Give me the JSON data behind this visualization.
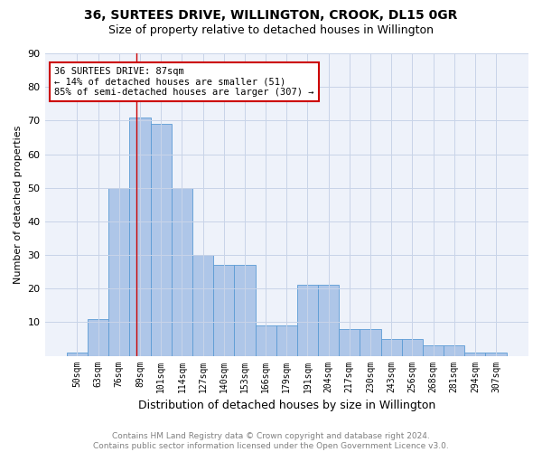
{
  "title1": "36, SURTEES DRIVE, WILLINGTON, CROOK, DL15 0GR",
  "title2": "Size of property relative to detached houses in Willington",
  "xlabel": "Distribution of detached houses by size in Willington",
  "ylabel": "Number of detached properties",
  "categories": [
    "50sqm",
    "63sqm",
    "76sqm",
    "89sqm",
    "101sqm",
    "114sqm",
    "127sqm",
    "140sqm",
    "153sqm",
    "166sqm",
    "179sqm",
    "191sqm",
    "204sqm",
    "217sqm",
    "230sqm",
    "243sqm",
    "256sqm",
    "268sqm",
    "281sqm",
    "294sqm",
    "307sqm"
  ],
  "bar_values": [
    1,
    11,
    50,
    71,
    69,
    50,
    30,
    27,
    27,
    9,
    9,
    21,
    21,
    8,
    8,
    5,
    5,
    3,
    3,
    1,
    1
  ],
  "bar_color": "#aec6e8",
  "bar_edge_color": "#5b9bd5",
  "annotation_line1": "36 SURTEES DRIVE: 87sqm",
  "annotation_line2": "← 14% of detached houses are smaller (51)",
  "annotation_line3": "85% of semi-detached houses are larger (307) →",
  "annotation_box_color": "#cc0000",
  "ylim": [
    0,
    90
  ],
  "yticks": [
    0,
    10,
    20,
    30,
    40,
    50,
    60,
    70,
    80,
    90
  ],
  "grid_color": "#c8d4e8",
  "bg_color": "#eef2fa",
  "footer": "Contains HM Land Registry data © Crown copyright and database right 2024.\nContains public sector information licensed under the Open Government Licence v3.0.",
  "title1_fontsize": 10,
  "title2_fontsize": 9,
  "xlabel_fontsize": 9,
  "ylabel_fontsize": 8,
  "footer_fontsize": 6.5,
  "tick_fontsize": 7
}
